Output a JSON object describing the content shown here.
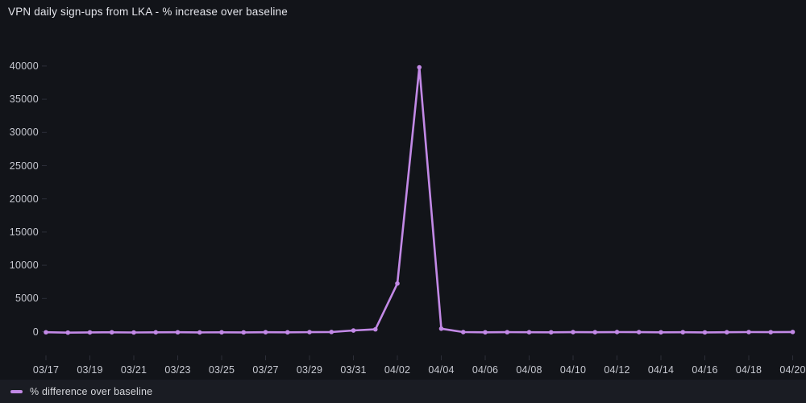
{
  "chart_data": {
    "type": "line",
    "title": "VPN daily sign-ups from LKA - % increase over baseline",
    "xlabel": "",
    "ylabel": "",
    "grid": false,
    "legend_position": "bottom-left",
    "y_ticks": [
      0,
      5000,
      10000,
      15000,
      20000,
      25000,
      30000,
      35000,
      40000
    ],
    "ylim": [
      -1700,
      41500
    ],
    "x_tick_labels": [
      "03/17",
      "03/19",
      "03/21",
      "03/23",
      "03/25",
      "03/27",
      "03/29",
      "03/31",
      "04/02",
      "04/04",
      "04/06",
      "04/08",
      "04/10",
      "04/12",
      "04/14",
      "04/16",
      "04/18",
      "04/20"
    ],
    "x": [
      "03/17",
      "03/18",
      "03/19",
      "03/20",
      "03/21",
      "03/22",
      "03/23",
      "03/24",
      "03/25",
      "03/26",
      "03/27",
      "03/28",
      "03/29",
      "03/30",
      "03/31",
      "04/01",
      "04/02",
      "04/03",
      "04/04",
      "04/05",
      "04/06",
      "04/07",
      "04/08",
      "04/09",
      "04/10",
      "04/11",
      "04/12",
      "04/13",
      "04/14",
      "04/15",
      "04/16",
      "04/17",
      "04/18",
      "04/19",
      "04/20"
    ],
    "series": [
      {
        "name": "% difference over baseline",
        "color": "#c289e6",
        "values": [
          -90,
          -140,
          -110,
          -95,
          -120,
          -100,
          -90,
          -115,
          -95,
          -105,
          -80,
          -95,
          -70,
          -45,
          180,
          350,
          7250,
          39800,
          450,
          -60,
          -95,
          -75,
          -85,
          -95,
          -70,
          -85,
          -55,
          -70,
          -95,
          -80,
          -105,
          -85,
          -60,
          -75,
          -45
        ]
      }
    ],
    "colors": {
      "background": "#121419",
      "legend_bar_background": "#1a1c23",
      "axis_label": "#c7c9d1",
      "title": "#e3e4ea",
      "tick_mark": "#2c2e38"
    }
  }
}
